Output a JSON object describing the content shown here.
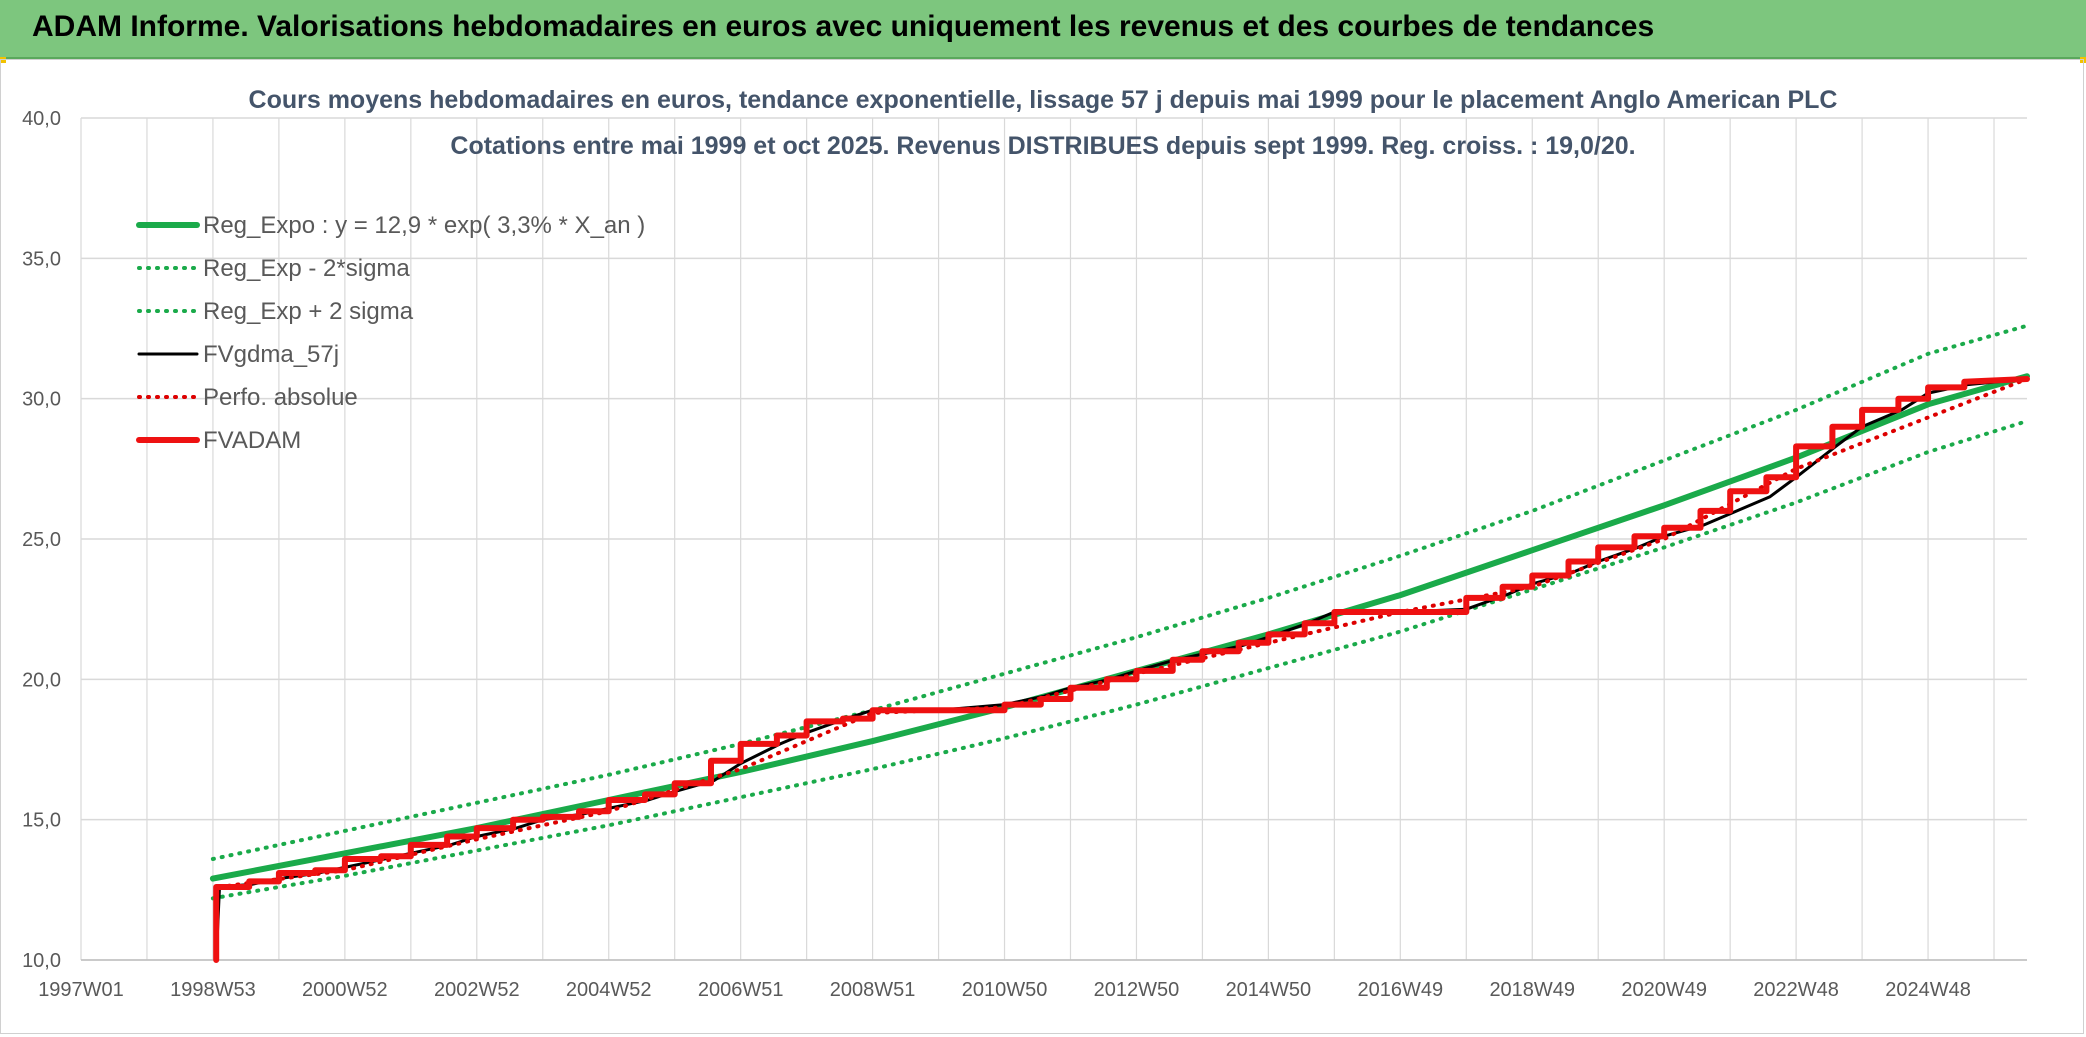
{
  "header": {
    "title": "ADAM Informe. Valorisations hebdomadaires en euros avec uniquement les revenus et des courbes de tendances"
  },
  "colors": {
    "header_bg": "#7dc67e",
    "reg_green": "#1aaa4a",
    "fv_black": "#000000",
    "adam_red": "#ee1111",
    "perfo_red": "#dd0000",
    "grid": "#d9d9d9",
    "title_text": "#44546a",
    "axis_text": "#595959"
  },
  "chart_data": {
    "type": "line",
    "title": "Cours moyens hebdomadaires en euros, tendance exponentielle, lissage 57 j depuis mai 1999 pour le placement Anglo American PLC",
    "subtitle": "Cotations entre mai 1999 et oct 2025. Revenus DISTRIBUES depuis sept 1999. Reg. croiss. : 19,0/20.",
    "xlabel": "",
    "ylabel": "",
    "xlim": [
      1997.0,
      2026.5
    ],
    "ylim": [
      10,
      40
    ],
    "y_ticks": [
      "10,0",
      "15,0",
      "20,0",
      "25,0",
      "30,0",
      "35,0",
      "40,0"
    ],
    "x_ticks": [
      {
        "label": "1997W01",
        "x": 1997.0
      },
      {
        "label": "1998W53",
        "x": 1999.0
      },
      {
        "label": "2000W52",
        "x": 2001.0
      },
      {
        "label": "2002W52",
        "x": 2003.0
      },
      {
        "label": "2004W52",
        "x": 2005.0
      },
      {
        "label": "2006W51",
        "x": 2007.0
      },
      {
        "label": "2008W51",
        "x": 2009.0
      },
      {
        "label": "2010W50",
        "x": 2011.0
      },
      {
        "label": "2012W50",
        "x": 2013.0
      },
      {
        "label": "2014W50",
        "x": 2015.0
      },
      {
        "label": "2016W49",
        "x": 2017.0
      },
      {
        "label": "2018W49",
        "x": 2019.0
      },
      {
        "label": "2020W49",
        "x": 2021.0
      },
      {
        "label": "2022W48",
        "x": 2023.0
      },
      {
        "label": "2024W48",
        "x": 2025.0
      }
    ],
    "grid": true,
    "legend_position": "top-left",
    "series": [
      {
        "name": "Reg_Expo : y = 12,9 * exp( 3,3% *  X_an )",
        "style": "solid-thick",
        "color": "#1aaa4a",
        "x": [
          1999.0,
          2001.0,
          2003.0,
          2005.0,
          2007.0,
          2009.0,
          2011.0,
          2013.0,
          2015.0,
          2017.0,
          2019.0,
          2021.0,
          2023.0,
          2025.0,
          2026.5
        ],
        "y": [
          12.9,
          13.8,
          14.7,
          15.7,
          16.7,
          17.8,
          19.0,
          20.3,
          21.6,
          23.0,
          24.6,
          26.2,
          27.9,
          29.8,
          30.8
        ]
      },
      {
        "name": "Reg_Exp - 2*sigma",
        "style": "dotted",
        "color": "#1aaa4a",
        "x": [
          1999.0,
          2001.0,
          2003.0,
          2005.0,
          2007.0,
          2009.0,
          2011.0,
          2013.0,
          2015.0,
          2017.0,
          2019.0,
          2021.0,
          2023.0,
          2025.0,
          2026.5
        ],
        "y": [
          12.2,
          13.0,
          13.9,
          14.8,
          15.8,
          16.8,
          17.9,
          19.1,
          20.4,
          21.7,
          23.2,
          24.7,
          26.3,
          28.1,
          29.2
        ]
      },
      {
        "name": "Reg_Exp + 2 sigma",
        "style": "dotted",
        "color": "#1aaa4a",
        "x": [
          1999.0,
          2001.0,
          2003.0,
          2005.0,
          2007.0,
          2009.0,
          2011.0,
          2013.0,
          2015.0,
          2017.0,
          2019.0,
          2021.0,
          2023.0,
          2025.0,
          2026.5
        ],
        "y": [
          13.6,
          14.6,
          15.6,
          16.6,
          17.7,
          18.9,
          20.2,
          21.5,
          22.9,
          24.4,
          26.0,
          27.8,
          29.6,
          31.6,
          32.6
        ]
      },
      {
        "name": "FVgdma_57j",
        "style": "solid",
        "color": "#000000",
        "x": [
          1999.05,
          1999.1,
          1999.6,
          2000.0,
          2000.6,
          2001.0,
          2001.6,
          2002.0,
          2002.6,
          2003.0,
          2003.6,
          2004.0,
          2004.6,
          2005.0,
          2005.6,
          2006.0,
          2006.6,
          2007.0,
          2007.6,
          2008.0,
          2008.6,
          2009.0,
          2010.0,
          2011.0,
          2011.6,
          2012.0,
          2012.6,
          2013.0,
          2013.6,
          2014.0,
          2014.6,
          2015.0,
          2015.6,
          2016.0,
          2017.0,
          2018.0,
          2018.6,
          2019.0,
          2019.6,
          2020.0,
          2020.6,
          2021.0,
          2021.6,
          2022.0,
          2022.6,
          2023.0,
          2023.6,
          2024.0,
          2024.6,
          2025.0,
          2025.6,
          2026.5
        ],
        "y": [
          10.0,
          12.6,
          12.7,
          12.9,
          13.1,
          13.3,
          13.6,
          13.8,
          14.1,
          14.4,
          14.7,
          15.0,
          15.2,
          15.4,
          15.7,
          16.0,
          16.4,
          17.0,
          17.7,
          18.1,
          18.6,
          18.9,
          18.9,
          19.1,
          19.4,
          19.7,
          20.0,
          20.3,
          20.7,
          20.9,
          21.2,
          21.5,
          22.0,
          22.4,
          22.4,
          22.5,
          23.0,
          23.4,
          23.8,
          24.2,
          24.7,
          25.1,
          25.5,
          25.9,
          26.5,
          27.2,
          28.3,
          29.0,
          29.6,
          30.2,
          30.5,
          30.7
        ]
      },
      {
        "name": "Perfo. absolue",
        "style": "dotted",
        "color": "#dd0000",
        "x": [
          1999.1,
          2001.0,
          2003.0,
          2005.0,
          2007.0,
          2009.0,
          2011.0,
          2013.0,
          2015.0,
          2017.0,
          2019.0,
          2021.0,
          2023.0,
          2026.5
        ],
        "y": [
          12.6,
          13.2,
          14.3,
          15.3,
          16.8,
          18.8,
          19.0,
          20.2,
          21.3,
          22.4,
          23.3,
          25.0,
          27.5,
          30.7
        ]
      },
      {
        "name": "FVADAM",
        "style": "solid-thick",
        "color": "#ee1111",
        "x": [
          1999.05,
          1999.05,
          1999.55,
          1999.55,
          2000.0,
          2000.0,
          2000.55,
          2000.55,
          2001.0,
          2001.0,
          2001.55,
          2001.55,
          2002.0,
          2002.0,
          2002.55,
          2002.55,
          2003.0,
          2003.0,
          2003.55,
          2003.55,
          2004.0,
          2004.0,
          2004.55,
          2004.55,
          2005.0,
          2005.0,
          2005.55,
          2005.55,
          2006.0,
          2006.0,
          2006.55,
          2006.55,
          2007.0,
          2007.0,
          2007.55,
          2007.55,
          2008.0,
          2008.0,
          2008.55,
          2008.55,
          2009.0,
          2009.0,
          2011.0,
          2011.0,
          2011.55,
          2011.55,
          2012.0,
          2012.0,
          2012.55,
          2012.55,
          2013.0,
          2013.0,
          2013.55,
          2013.55,
          2014.0,
          2014.0,
          2014.55,
          2014.55,
          2015.0,
          2015.0,
          2015.55,
          2015.55,
          2016.0,
          2016.0,
          2018.0,
          2018.0,
          2018.55,
          2018.55,
          2019.0,
          2019.0,
          2019.55,
          2019.55,
          2020.0,
          2020.0,
          2020.55,
          2020.55,
          2021.0,
          2021.0,
          2021.55,
          2021.55,
          2022.0,
          2022.0,
          2022.55,
          2022.55,
          2023.0,
          2023.0,
          2023.55,
          2023.55,
          2024.0,
          2024.0,
          2024.55,
          2024.55,
          2025.0,
          2025.0,
          2025.55,
          2025.55,
          2026.5
        ],
        "y": [
          10.0,
          12.6,
          12.6,
          12.8,
          12.8,
          13.1,
          13.1,
          13.2,
          13.2,
          13.6,
          13.6,
          13.7,
          13.7,
          14.1,
          14.1,
          14.4,
          14.4,
          14.7,
          14.7,
          15.0,
          15.0,
          15.1,
          15.1,
          15.3,
          15.3,
          15.7,
          15.7,
          15.9,
          15.9,
          16.3,
          16.3,
          17.1,
          17.1,
          17.7,
          17.7,
          18.0,
          18.0,
          18.5,
          18.5,
          18.6,
          18.6,
          18.9,
          18.9,
          19.1,
          19.1,
          19.3,
          19.3,
          19.7,
          19.7,
          20.0,
          20.0,
          20.3,
          20.3,
          20.7,
          20.7,
          21.0,
          21.0,
          21.3,
          21.3,
          21.6,
          21.6,
          22.0,
          22.0,
          22.4,
          22.4,
          22.9,
          22.9,
          23.3,
          23.3,
          23.7,
          23.7,
          24.2,
          24.2,
          24.7,
          24.7,
          25.1,
          25.1,
          25.4,
          25.4,
          26.0,
          26.0,
          26.7,
          26.7,
          27.2,
          27.2,
          28.3,
          28.3,
          29.0,
          29.0,
          29.6,
          29.6,
          30.0,
          30.0,
          30.4,
          30.4,
          30.6,
          30.7
        ]
      }
    ]
  }
}
